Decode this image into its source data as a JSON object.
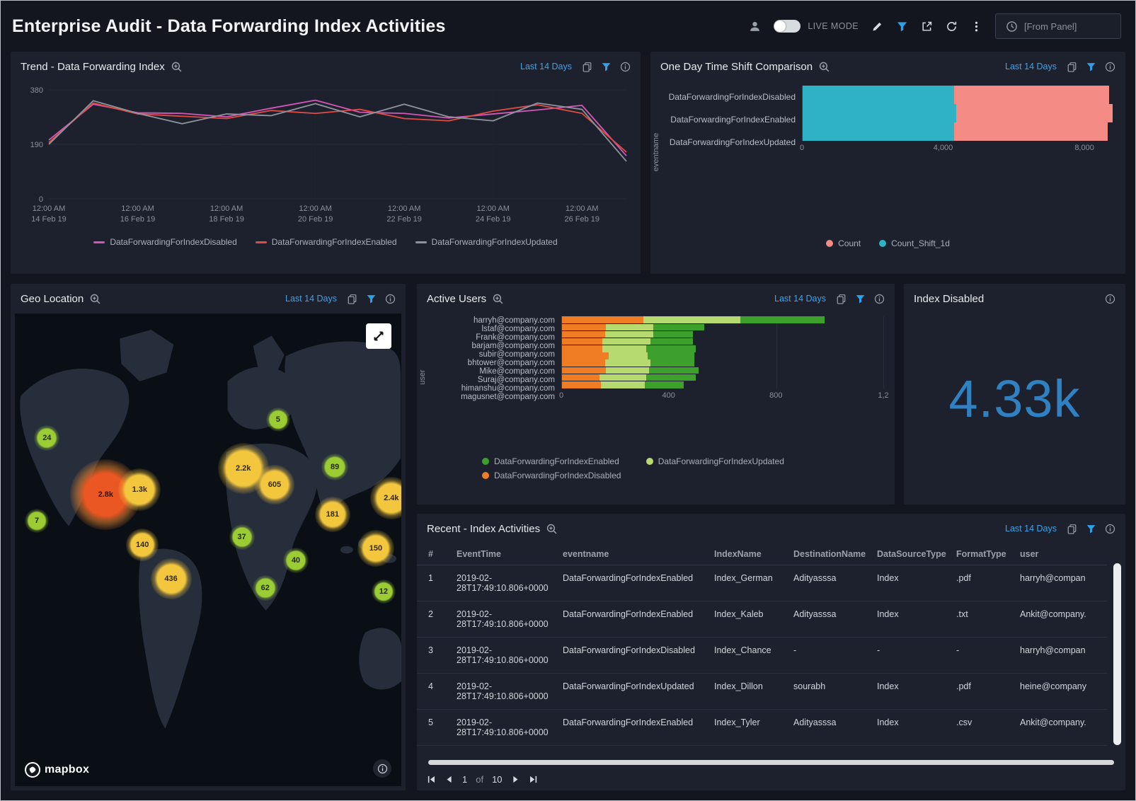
{
  "header": {
    "title": "Enterprise Audit - Data Forwarding Index Activities",
    "live_mode": "LIVE MODE",
    "from_panel": "[From Panel]"
  },
  "panels": {
    "trend": {
      "title": "Trend - Data Forwarding Index",
      "time_range": "Last 14 Days"
    },
    "timeshift": {
      "title": "One Day Time Shift Comparison",
      "time_range": "Last 14 Days"
    },
    "geo": {
      "title": "Geo Location",
      "time_range": "Last 14 Days",
      "mapbox": "mapbox"
    },
    "active_users": {
      "title": "Active Users",
      "time_range": "Last 14 Days"
    },
    "index_disabled": {
      "title": "Index Disabled",
      "value": "4.33k"
    },
    "recent": {
      "title": "Recent - Index Activities",
      "time_range": "Last 14 Days",
      "pagination": {
        "page": "1",
        "of": "of",
        "total": "10"
      }
    }
  },
  "chart_data": [
    {
      "id": "trend",
      "type": "line",
      "title": "Trend - Data Forwarding Index",
      "x_count": 14,
      "x_tick_positions": [
        0,
        2,
        4,
        6,
        8,
        10,
        12
      ],
      "x_tick_labels": [
        [
          "12:00 AM",
          "14 Feb 19"
        ],
        [
          "12:00 AM",
          "16 Feb 19"
        ],
        [
          "12:00 AM",
          "18 Feb 19"
        ],
        [
          "12:00 AM",
          "20 Feb 19"
        ],
        [
          "12:00 AM",
          "22 Feb 19"
        ],
        [
          "12:00 AM",
          "24 Feb 19"
        ],
        [
          "12:00 AM",
          "26 Feb 19"
        ]
      ],
      "ylim": [
        0,
        380
      ],
      "y_ticks": [
        0,
        190,
        380
      ],
      "series": [
        {
          "name": "DataForwardingForIndexDisabled",
          "color": "#d457b8",
          "values": [
            205,
            330,
            300,
            298,
            286,
            316,
            344,
            302,
            298,
            282,
            296,
            310,
            326,
            150
          ]
        },
        {
          "name": "DataForwardingForIndexEnabled",
          "color": "#e04b43",
          "values": [
            196,
            334,
            296,
            288,
            280,
            308,
            298,
            312,
            280,
            272,
            306,
            328,
            298,
            163
          ]
        },
        {
          "name": "DataForwardingForIndexUpdated",
          "color": "#8e949e",
          "values": [
            190,
            342,
            298,
            262,
            296,
            290,
            332,
            286,
            330,
            286,
            272,
            334,
            312,
            131
          ]
        }
      ]
    },
    {
      "id": "timeshift",
      "type": "bar",
      "orientation": "horizontal",
      "stacked": true,
      "title": "One Day Time Shift Comparison",
      "ylabel": "eventname",
      "categories": [
        "DataForwardingForIndexDisabled",
        "DataForwardingForIndexEnabled",
        "DataForwardingForIndexUpdated"
      ],
      "xlim": [
        0,
        8800
      ],
      "x_ticks": [
        {
          "v": 0,
          "label": "0"
        },
        {
          "v": 4000,
          "label": "4,000"
        },
        {
          "v": 8000,
          "label": "8,000"
        }
      ],
      "series": [
        {
          "name": "Count_Shift_1d",
          "color": "#2fb3c4",
          "values": [
            4300,
            4400,
            4300
          ]
        },
        {
          "name": "Count",
          "color": "#f48b84",
          "values": [
            4400,
            4500,
            4350
          ]
        }
      ],
      "legend": [
        {
          "name": "Count",
          "color": "#f48b84"
        },
        {
          "name": "Count_Shift_1d",
          "color": "#2fb3c4"
        }
      ]
    },
    {
      "id": "active_users",
      "type": "bar",
      "orientation": "horizontal",
      "stacked": true,
      "title": "Active Users",
      "ylabel": "user",
      "categories": [
        "harryh@company.com",
        "lstaf@company.com",
        "Frank@company.com",
        "barjam@company.com",
        "subir@company.com",
        "bhtower@company.com",
        "Mike@company.com",
        "Suraj@company.com",
        "himanshu@company.com",
        "magusnet@company.com"
      ],
      "xlim": [
        0,
        1200
      ],
      "x_ticks": [
        {
          "v": 0,
          "label": "0"
        },
        {
          "v": 400,
          "label": "400"
        },
        {
          "v": 800,
          "label": "800"
        },
        {
          "v": 1200,
          "label": "1,2"
        }
      ],
      "series": [
        {
          "name": "DataForwardingForIndexDisabled",
          "color": "#f07d23",
          "values": [
            305,
            165,
            160,
            150,
            150,
            175,
            160,
            165,
            140,
            145
          ]
        },
        {
          "name": "DataForwardingForIndexUpdated",
          "color": "#b7da70",
          "values": [
            360,
            175,
            180,
            180,
            165,
            145,
            170,
            160,
            175,
            165
          ]
        },
        {
          "name": "DataForwardingForIndexEnabled",
          "color": "#3da02c",
          "values": [
            315,
            190,
            150,
            160,
            185,
            175,
            165,
            185,
            185,
            145
          ]
        }
      ],
      "legend": [
        {
          "name": "DataForwardingForIndexEnabled",
          "color": "#3da02c"
        },
        {
          "name": "DataForwardingForIndexUpdated",
          "color": "#b7da70"
        },
        {
          "name": "DataForwardingForIndexDisabled",
          "color": "#f07d23"
        }
      ]
    },
    {
      "id": "geo",
      "type": "map-bubbles",
      "title": "Geo Location",
      "bubbles": [
        {
          "label": "24",
          "x": 8.3,
          "y": 26.3,
          "size": 36,
          "color": "green"
        },
        {
          "label": "2.8k",
          "x": 23.5,
          "y": 38.3,
          "size": 100,
          "color": "red"
        },
        {
          "label": "1.3k",
          "x": 32.3,
          "y": 37.3,
          "size": 60,
          "color": "yellow"
        },
        {
          "label": "7",
          "x": 5.7,
          "y": 43.8,
          "size": 34,
          "color": "green"
        },
        {
          "label": "140",
          "x": 33.0,
          "y": 48.9,
          "size": 46,
          "color": "yellow"
        },
        {
          "label": "436",
          "x": 40.4,
          "y": 56.1,
          "size": 58,
          "color": "yellow"
        },
        {
          "label": "2.2k",
          "x": 59.1,
          "y": 32.8,
          "size": 72,
          "color": "yellow"
        },
        {
          "label": "605",
          "x": 67.2,
          "y": 36.3,
          "size": 56,
          "color": "yellow"
        },
        {
          "label": "37",
          "x": 58.7,
          "y": 47.3,
          "size": 36,
          "color": "green"
        },
        {
          "label": "62",
          "x": 64.8,
          "y": 58.1,
          "size": 36,
          "color": "green"
        },
        {
          "label": "40",
          "x": 72.7,
          "y": 52.2,
          "size": 36,
          "color": "green"
        },
        {
          "label": "5",
          "x": 68.1,
          "y": 22.5,
          "size": 34,
          "color": "green"
        },
        {
          "label": "89",
          "x": 82.8,
          "y": 32.5,
          "size": 38,
          "color": "green"
        },
        {
          "label": "181",
          "x": 82.2,
          "y": 42.5,
          "size": 50,
          "color": "yellow"
        },
        {
          "label": "150",
          "x": 93.4,
          "y": 49.7,
          "size": 52,
          "color": "yellow"
        },
        {
          "label": "2.4k",
          "x": 97.4,
          "y": 39.1,
          "size": 60,
          "color": "yellow"
        },
        {
          "label": "12",
          "x": 95.4,
          "y": 58.9,
          "size": 34,
          "color": "green"
        }
      ]
    },
    {
      "id": "recent",
      "type": "table",
      "title": "Recent - Index Activities",
      "columns": [
        "#",
        "EventTime",
        "eventname",
        "IndexName",
        "DestinationName",
        "DataSourceType",
        "FormatType",
        "user"
      ],
      "rows": [
        [
          "1",
          "2019-02-28T17:49:10.806+0000",
          "DataForwardingForIndexEnabled",
          "Index_German",
          "Adityasssa",
          "Index",
          ".pdf",
          "harryh@compan"
        ],
        [
          "2",
          "2019-02-28T17:49:10.806+0000",
          "DataForwardingForIndexEnabled",
          "Index_Kaleb",
          "Adityasssa",
          "Index",
          ".txt",
          "Ankit@company."
        ],
        [
          "3",
          "2019-02-28T17:49:10.806+0000",
          "DataForwardingForIndexDisabled",
          "Index_Chance",
          "-",
          "-",
          "-",
          "harryh@compan"
        ],
        [
          "4",
          "2019-02-28T17:49:10.806+0000",
          "DataForwardingForIndexUpdated",
          "Index_Dillon",
          "sourabh",
          "Index",
          ".pdf",
          "heine@company"
        ],
        [
          "5",
          "2019-02-28T17:49:10.806+0000",
          "DataForwardingForIndexEnabled",
          "Index_Tyler",
          "Adityasssa",
          "Index",
          ".csv",
          "Ankit@company."
        ]
      ]
    }
  ]
}
